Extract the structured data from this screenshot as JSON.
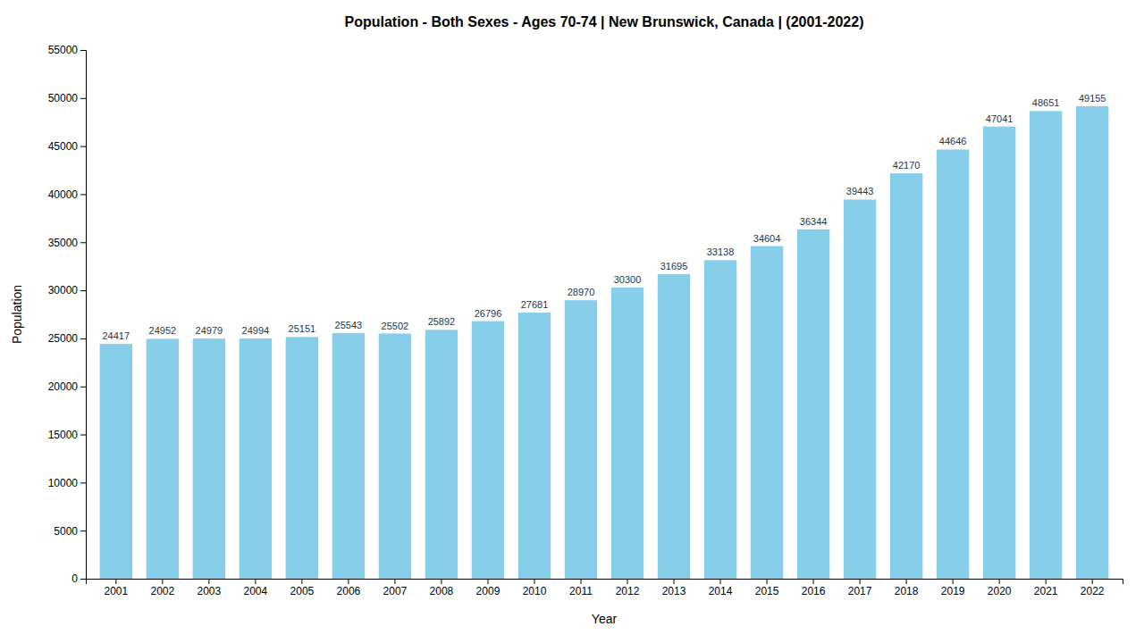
{
  "chart_data": {
    "type": "bar",
    "title": "Population - Both Sexes - Ages 70-74 | New Brunswick, Canada |  (2001-2022)",
    "xlabel": "Year",
    "ylabel": "Population",
    "categories": [
      "2001",
      "2002",
      "2003",
      "2004",
      "2005",
      "2006",
      "2007",
      "2008",
      "2009",
      "2010",
      "2011",
      "2012",
      "2013",
      "2014",
      "2015",
      "2016",
      "2017",
      "2018",
      "2019",
      "2020",
      "2021",
      "2022"
    ],
    "values": [
      24417,
      24952,
      24979,
      24994,
      25151,
      25543,
      25502,
      25892,
      26796,
      27681,
      28970,
      30300,
      31695,
      33138,
      34604,
      36344,
      39443,
      42170,
      44646,
      47041,
      48651,
      49155
    ],
    "color": "#87CEEB",
    "ylim": [
      0,
      55000
    ],
    "yticks": [
      0,
      5000,
      10000,
      15000,
      20000,
      25000,
      30000,
      35000,
      40000,
      45000,
      50000,
      55000
    ],
    "grid": false,
    "data_labels": true
  }
}
